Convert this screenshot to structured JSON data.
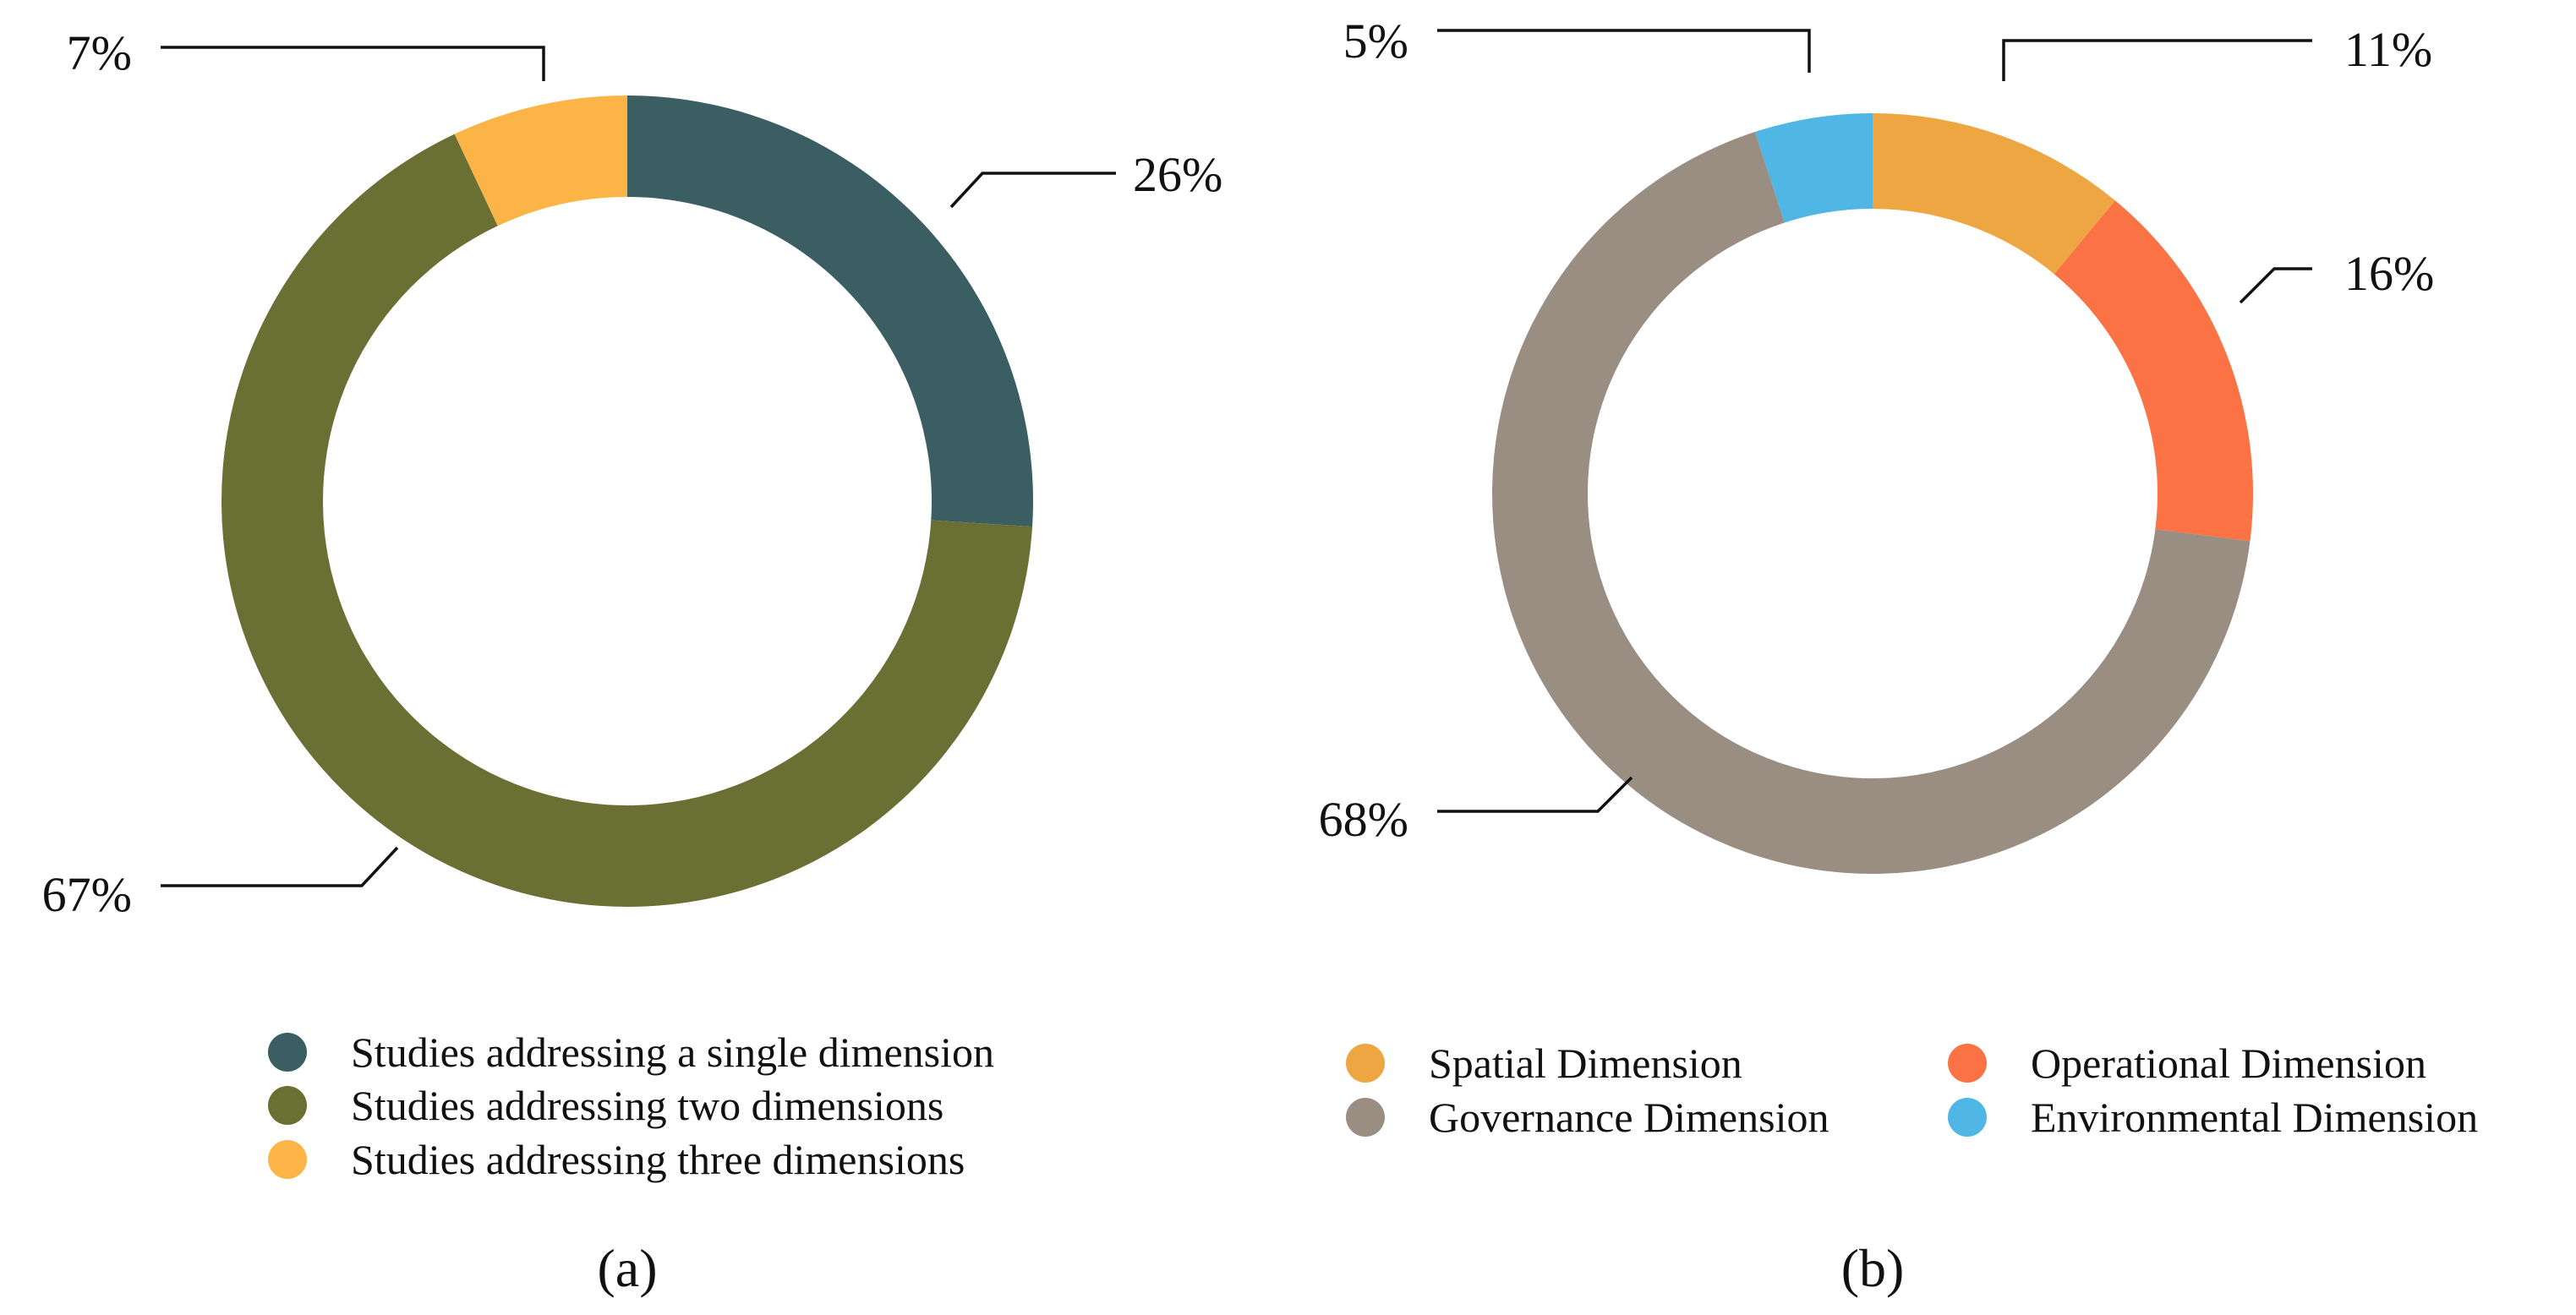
{
  "chart_data": [
    {
      "type": "pie",
      "donut": true,
      "panel_label": "(a)",
      "categories": [
        "Studies addressing a single dimension",
        "Studies addressing two dimensions",
        "Studies addressing three dimensions"
      ],
      "values": [
        26,
        67,
        7
      ],
      "value_labels": [
        "26%",
        "67%",
        "7%"
      ],
      "colors": [
        "#3b5e63",
        "#6a7033",
        "#fdb446"
      ],
      "legend_position": "bottom"
    },
    {
      "type": "pie",
      "donut": true,
      "panel_label": "(b)",
      "categories": [
        "Spatial Dimension",
        "Operational Dimension",
        "Governance Dimension",
        "Environmental Dimension"
      ],
      "values": [
        11,
        16,
        68,
        5
      ],
      "value_labels": [
        "11%",
        "16%",
        "68%",
        "5%"
      ],
      "colors": [
        "#eea643",
        "#fb7244",
        "#9a8e83",
        "#50b6e5"
      ],
      "legend_position": "bottom"
    }
  ]
}
